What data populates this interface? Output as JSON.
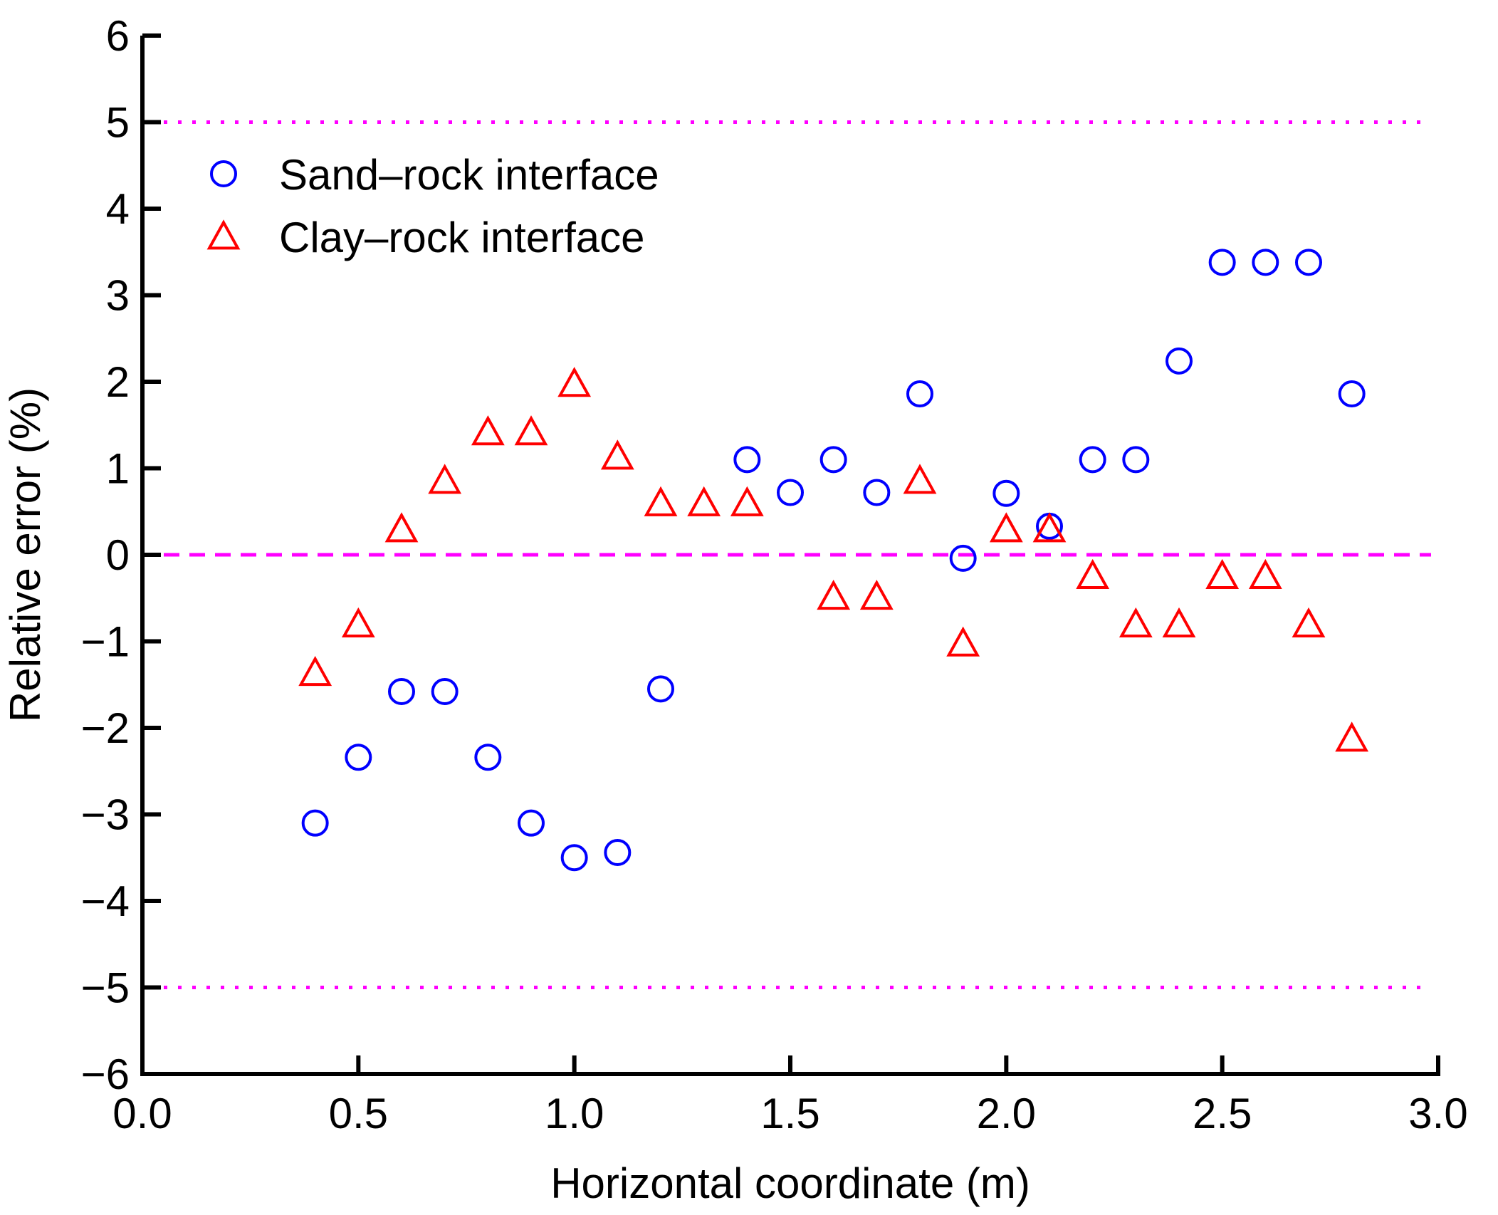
{
  "chart_data": {
    "type": "scatter",
    "title": "",
    "xlabel": "Horizontal coordinate (m)",
    "ylabel": "Relative error (%)",
    "xlim": [
      0.0,
      3.0
    ],
    "ylim": [
      -6,
      6
    ],
    "xticks": [
      "0.0",
      "0.5",
      "1.0",
      "1.5",
      "2.0",
      "2.5",
      "3.0"
    ],
    "yticks": [
      "6",
      "5",
      "4",
      "3",
      "2",
      "1",
      "0",
      "−1",
      "−2",
      "−3",
      "−4",
      "−5",
      "−6"
    ],
    "grid": false,
    "legend_position": "top-left",
    "reference_lines": [
      {
        "y": 5,
        "style": "dotted",
        "color": "#ff00ff"
      },
      {
        "y": 0,
        "style": "dashed",
        "color": "#ff00ff"
      },
      {
        "y": -5,
        "style": "dotted",
        "color": "#ff00ff"
      }
    ],
    "series": [
      {
        "name": "Sand–rock interface",
        "marker": "circle",
        "color": "#0000ff",
        "x": [
          0.4,
          0.5,
          0.6,
          0.7,
          0.8,
          0.9,
          1.0,
          1.1,
          1.2,
          1.4,
          1.5,
          1.6,
          1.7,
          1.8,
          1.9,
          2.0,
          2.1,
          2.2,
          2.3,
          2.4,
          2.5,
          2.6,
          2.7,
          2.8
        ],
        "y": [
          -3.1,
          -2.34,
          -1.58,
          -1.58,
          -2.34,
          -3.1,
          -3.5,
          -3.44,
          -1.55,
          1.1,
          0.72,
          1.1,
          0.72,
          1.86,
          -0.04,
          0.71,
          0.33,
          1.1,
          1.1,
          2.24,
          3.38,
          3.38,
          3.38,
          1.86
        ]
      },
      {
        "name": "Clay–rock interface",
        "marker": "triangle",
        "color": "#ff0000",
        "x": [
          0.4,
          0.5,
          0.6,
          0.7,
          0.8,
          0.9,
          1.0,
          1.1,
          1.2,
          1.3,
          1.4,
          1.6,
          1.7,
          1.8,
          1.9,
          2.0,
          2.1,
          2.2,
          2.3,
          2.4,
          2.5,
          2.6,
          2.7,
          2.8
        ],
        "y": [
          -1.38,
          -0.82,
          0.28,
          0.84,
          1.4,
          1.4,
          1.96,
          1.12,
          0.58,
          0.58,
          0.58,
          -0.5,
          -0.5,
          0.84,
          -1.04,
          0.28,
          0.28,
          -0.26,
          -0.82,
          -0.82,
          -0.26,
          -0.26,
          -0.82,
          -2.14
        ]
      }
    ]
  }
}
